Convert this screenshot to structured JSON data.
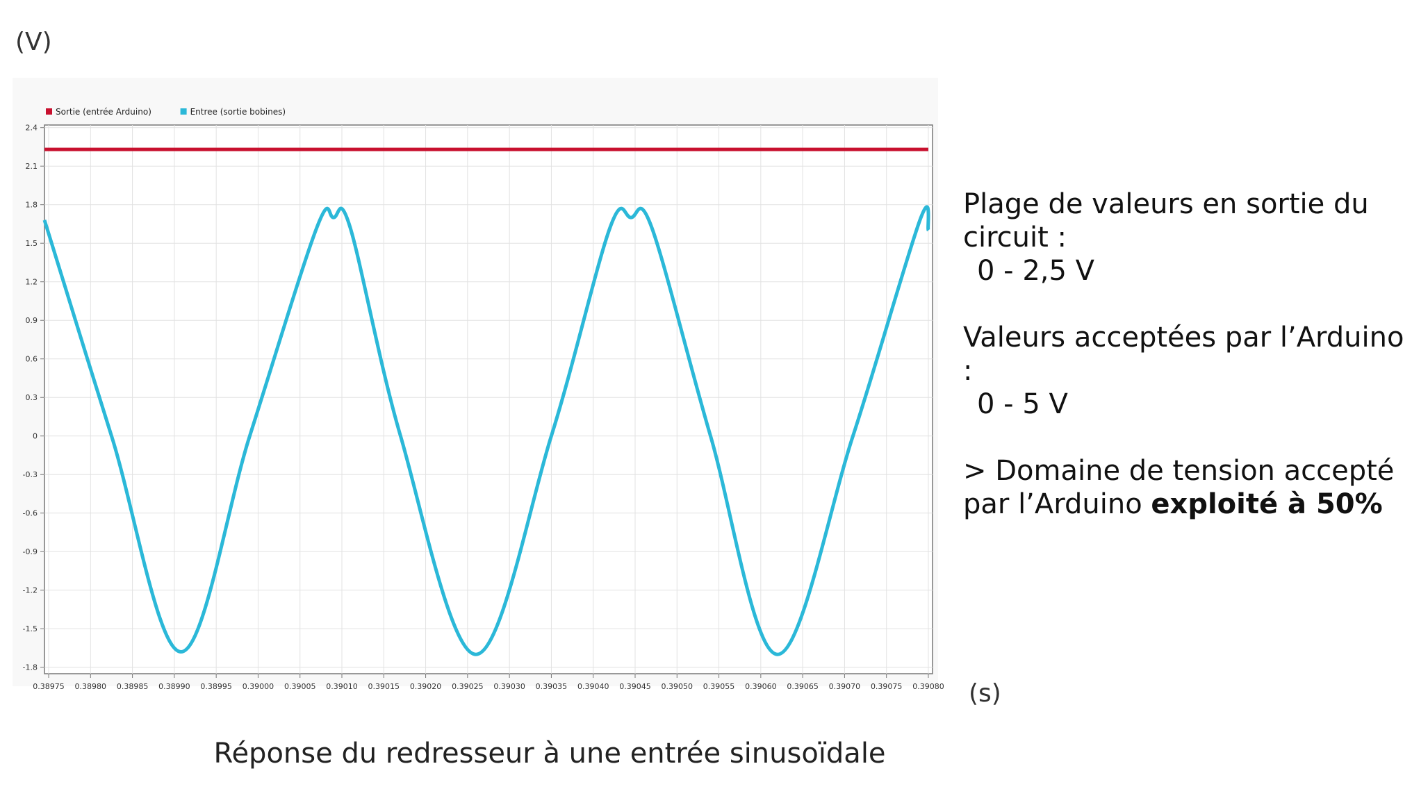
{
  "labels": {
    "y_unit": "(V)",
    "x_unit": "(s)",
    "caption": "Réponse du redresseur à une entrée sinusoïdale"
  },
  "notes": {
    "range_label": "Plage de valeurs en sortie du circuit :",
    "range_value": "0 - 2,5 V",
    "accepted_label": "Valeurs acceptées par l’Arduino :",
    "accepted_value": "0 - 5 V",
    "conclusion_prefix": "> Domaine de tension accepté par l’Arduino ",
    "conclusion_bold": "exploité à 50%"
  },
  "chart_data": {
    "type": "line",
    "xlim": [
      0.389745,
      0.390805
    ],
    "ylim": [
      -1.85,
      2.42
    ],
    "grid": true,
    "legend": "top-left",
    "x_ticks": [
      0.38975,
      0.3898,
      0.38985,
      0.3899,
      0.38995,
      0.39,
      0.39005,
      0.3901,
      0.39015,
      0.3902,
      0.39025,
      0.3903,
      0.39035,
      0.3904,
      0.39045,
      0.3905,
      0.39055,
      0.3906,
      0.39065,
      0.3907,
      0.39075,
      0.3908
    ],
    "x_tick_labels": [
      "0.38975",
      "0.38980",
      "0.38985",
      "0.38990",
      "0.38995",
      "0.39000",
      "0.39005",
      "0.39010",
      "0.39015",
      "0.39020",
      "0.39025",
      "0.39030",
      "0.39035",
      "0.39040",
      "0.39045",
      "0.39050",
      "0.39055",
      "0.39060",
      "0.39065",
      "0.39070",
      "0.39075",
      "0.39080"
    ],
    "y_ticks": [
      2.4,
      2.1,
      1.8,
      1.5,
      1.2,
      0.9,
      0.6,
      0.3,
      0,
      -0.3,
      -0.6,
      -0.9,
      -1.2,
      -1.5,
      -1.8
    ],
    "y_tick_labels": [
      "2.4",
      "2.1",
      "1.8",
      "1.5",
      "1.2",
      "0.9",
      "0.6",
      "0.3",
      "0",
      "-0.3",
      "-0.6",
      "-0.9",
      "-1.2",
      "-1.5",
      "-1.8"
    ],
    "series": [
      {
        "name": "Sortie (entrée Arduino)",
        "color": "#c8102e",
        "x": [
          0.389745,
          0.3908
        ],
        "y": [
          2.23,
          2.23
        ]
      },
      {
        "name": "Entree (sortie bobines)",
        "color": "#2bb8d8",
        "x": [
          0.389745,
          0.389825,
          0.389908,
          0.38999,
          0.39007,
          0.39009,
          0.39011,
          0.39017,
          0.39026,
          0.39035,
          0.39042,
          0.390445,
          0.39047,
          0.39054,
          0.39062,
          0.39071,
          0.39079,
          0.3908
        ],
        "y": [
          1.68,
          0.0,
          -1.68,
          0.0,
          1.62,
          1.7,
          1.62,
          0.0,
          -1.7,
          0.0,
          1.62,
          1.7,
          1.62,
          0.0,
          -1.7,
          0.0,
          1.68,
          1.6
        ]
      }
    ]
  }
}
